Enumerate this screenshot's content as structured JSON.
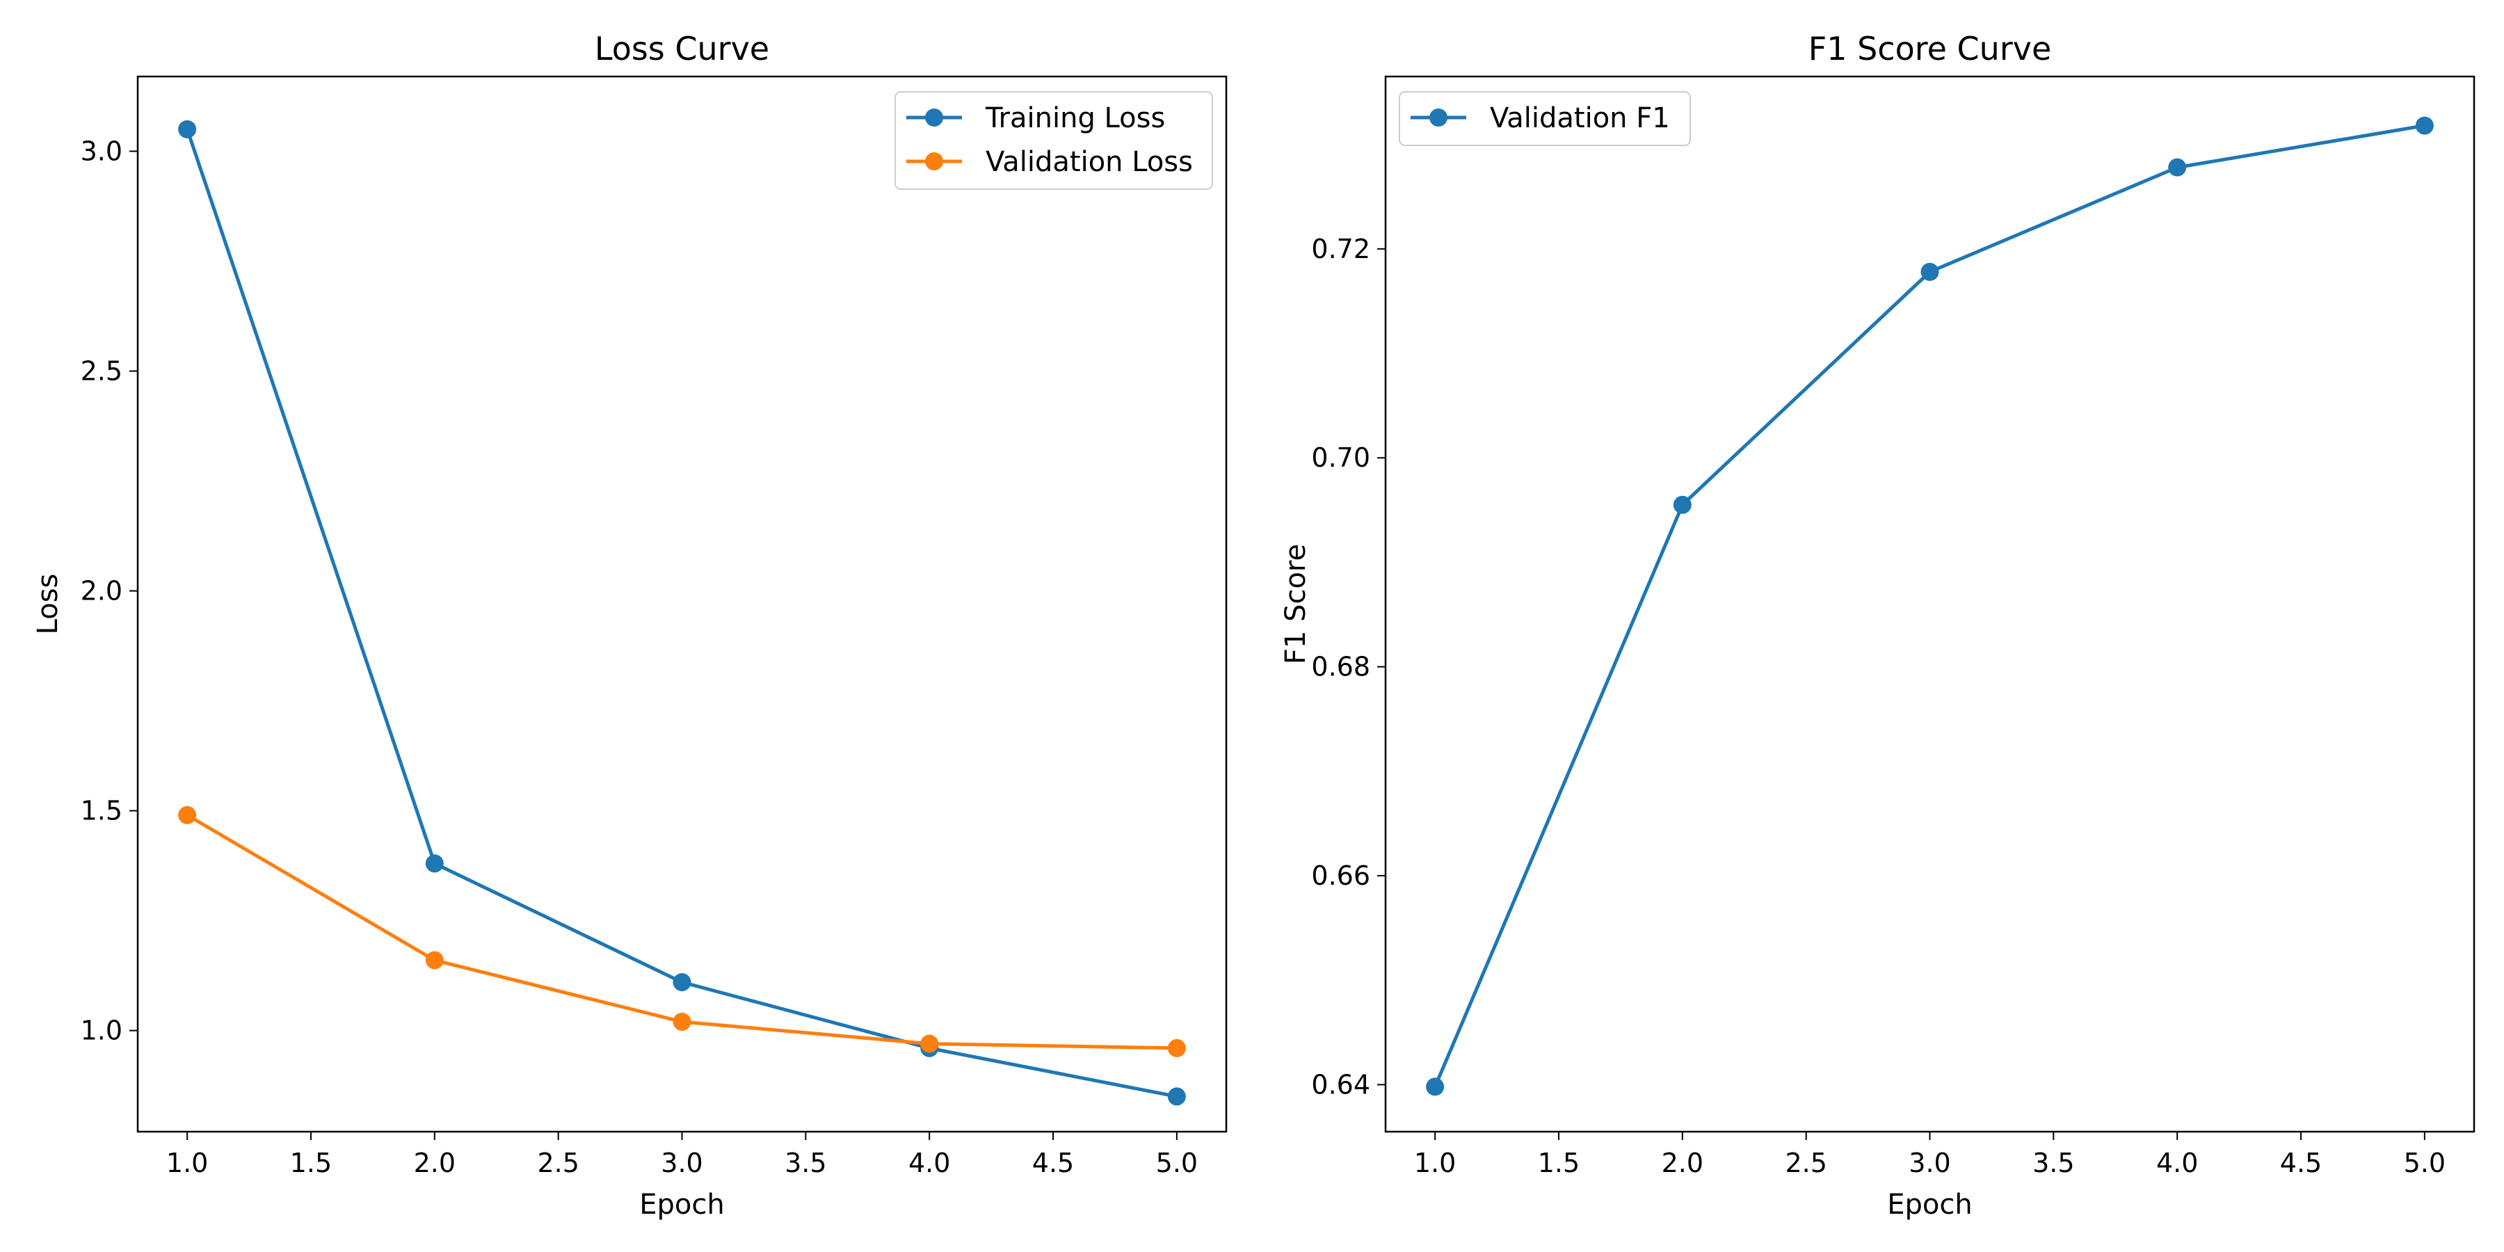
{
  "chart_data": [
    {
      "type": "line",
      "title": "Loss Curve",
      "xlabel": "Epoch",
      "ylabel": "Loss",
      "x": [
        1,
        2,
        3,
        4,
        5
      ],
      "xlim": [
        0.8,
        5.2
      ],
      "ylim": [
        0.77,
        3.17
      ],
      "xticks": [
        "1.0",
        "1.5",
        "2.0",
        "2.5",
        "3.0",
        "3.5",
        "4.0",
        "4.5",
        "5.0"
      ],
      "yticks": [
        "1.0",
        "1.5",
        "2.0",
        "2.5",
        "3.0"
      ],
      "grid": false,
      "legend_position": "top-right",
      "series": [
        {
          "name": "Training Loss",
          "values": [
            3.05,
            1.38,
            1.11,
            0.96,
            0.85
          ],
          "color": "#1f77b4",
          "marker": "circle"
        },
        {
          "name": "Validation Loss",
          "values": [
            1.49,
            1.16,
            1.02,
            0.97,
            0.96
          ],
          "color": "#ff7f0e",
          "marker": "circle"
        }
      ]
    },
    {
      "type": "line",
      "title": "F1 Score Curve",
      "xlabel": "Epoch",
      "ylabel": "F1 Score",
      "x": [
        1,
        2,
        3,
        4,
        5
      ],
      "xlim": [
        0.8,
        5.2
      ],
      "ylim": [
        0.6355,
        0.7365
      ],
      "xticks": [
        "1.0",
        "1.5",
        "2.0",
        "2.5",
        "3.0",
        "3.5",
        "4.0",
        "4.5",
        "5.0"
      ],
      "yticks": [
        "0.64",
        "0.66",
        "0.68",
        "0.70",
        "0.72"
      ],
      "grid": false,
      "legend_position": "top-left",
      "series": [
        {
          "name": "Validation F1",
          "values": [
            0.6398,
            0.6955,
            0.7178,
            0.7278,
            0.7318
          ],
          "color": "#1f77b4",
          "marker": "circle"
        }
      ]
    }
  ]
}
